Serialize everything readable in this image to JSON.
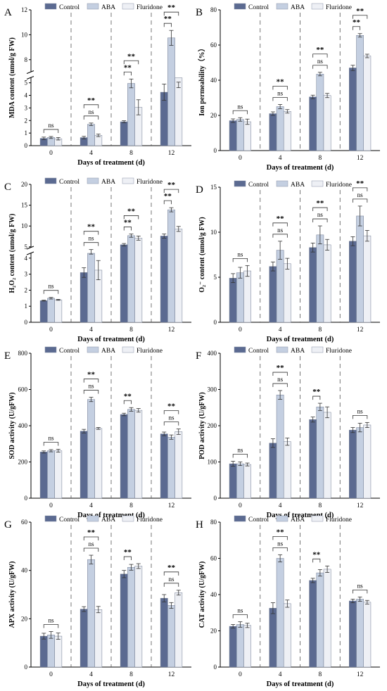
{
  "colors": {
    "control": "#5b6a91",
    "aba": "#c4cfe1",
    "fluridone": "#eef0f5",
    "axis": "#000000",
    "divider": "#555555"
  },
  "chart_data": [
    {
      "panel": "A",
      "type": "bar",
      "ylabel": "MDA content (umol/g FW)",
      "xlabel": "Days of treatment (d)",
      "categories": [
        "0",
        "4",
        "8",
        "12"
      ],
      "series": [
        {
          "name": "Control",
          "values": [
            0.58,
            0.64,
            1.9,
            4.25
          ],
          "errors": [
            0.1,
            0.1,
            0.08,
            0.65
          ]
        },
        {
          "name": "ABA",
          "values": [
            0.65,
            1.7,
            4.95,
            9.75
          ],
          "errors": [
            0.08,
            0.1,
            0.35,
            0.6
          ]
        },
        {
          "name": "Fluridone",
          "values": [
            0.55,
            0.82,
            3.05,
            5.4
          ],
          "errors": [
            0.1,
            0.1,
            0.6,
            0.35
          ]
        }
      ],
      "broken_axis": {
        "lower": [
          0,
          5.4
        ],
        "upper": [
          7,
          12
        ],
        "lower_ticks": [
          0,
          1,
          2,
          3,
          4,
          5
        ],
        "upper_ticks": [
          8,
          10,
          12
        ]
      },
      "annotations": [
        {
          "cat": 0,
          "label": "ns",
          "sig": false
        },
        {
          "cat": 1,
          "label": "ns",
          "sig": false
        },
        {
          "cat": 1,
          "label": "**",
          "sig": true
        },
        {
          "cat": 2,
          "label": "**",
          "sig": true
        },
        {
          "cat": 2,
          "label": "**",
          "sig": true
        },
        {
          "cat": 3,
          "label": "**",
          "sig": true
        },
        {
          "cat": 3,
          "label": "**",
          "sig": true
        }
      ]
    },
    {
      "panel": "B",
      "type": "bar",
      "ylabel": "Ion permeability（%）",
      "xlabel": "Days of treatment (d)",
      "categories": [
        "0",
        "4",
        "8",
        "12"
      ],
      "series": [
        {
          "name": "Control",
          "values": [
            17,
            21,
            30.5,
            47
          ],
          "errors": [
            1,
            1,
            1,
            1.5
          ]
        },
        {
          "name": "ABA",
          "values": [
            17.7,
            25,
            43.5,
            65.5
          ],
          "errors": [
            1,
            1.2,
            1,
            1
          ]
        },
        {
          "name": "Fluridone",
          "values": [
            16.4,
            22.3,
            31.3,
            53.8
          ],
          "errors": [
            1.5,
            1,
            1.2,
            1
          ]
        }
      ],
      "ylim": [
        0,
        80
      ],
      "yticks": [
        0,
        20,
        40,
        60,
        80
      ],
      "annotations": [
        {
          "cat": 0,
          "label": "ns",
          "sig": false
        },
        {
          "cat": 1,
          "label": "ns",
          "sig": false
        },
        {
          "cat": 1,
          "label": "**",
          "sig": true
        },
        {
          "cat": 2,
          "label": "ns",
          "sig": false
        },
        {
          "cat": 2,
          "label": "**",
          "sig": true
        },
        {
          "cat": 3,
          "label": "**",
          "sig": true
        },
        {
          "cat": 3,
          "label": "**",
          "sig": true
        }
      ]
    },
    {
      "panel": "C",
      "type": "bar",
      "ylabel": "H₂O₂ content (umol/g FW)",
      "xlabel": "Days of treatment (d)",
      "categories": [
        "0",
        "4",
        "8",
        "12"
      ],
      "series": [
        {
          "name": "Control",
          "values": [
            1.35,
            3.1,
            5.5,
            7.6
          ],
          "errors": [
            0.03,
            0.3,
            0.3,
            0.5
          ]
        },
        {
          "name": "ABA",
          "values": [
            1.5,
            4.3,
            7.7,
            13.9
          ],
          "errors": [
            0.05,
            0.05,
            0.4,
            0.5
          ]
        },
        {
          "name": "Fluridone",
          "values": [
            1.4,
            3.25,
            7.1,
            9.3
          ],
          "errors": [
            0.03,
            0.6,
            0.5,
            0.6
          ]
        }
      ],
      "broken_axis": {
        "lower": [
          0,
          4.3
        ],
        "upper": [
          4.8,
          20
        ],
        "lower_ticks": [
          0,
          1,
          2,
          3,
          4
        ],
        "upper_ticks": [
          5,
          10,
          15,
          20
        ]
      },
      "annotations": [
        {
          "cat": 0,
          "label": "ns",
          "sig": false
        },
        {
          "cat": 1,
          "label": "ns",
          "sig": false
        },
        {
          "cat": 1,
          "label": "**",
          "sig": true
        },
        {
          "cat": 2,
          "label": "**",
          "sig": true
        },
        {
          "cat": 2,
          "label": "**",
          "sig": true
        },
        {
          "cat": 3,
          "label": "**",
          "sig": true
        },
        {
          "cat": 3,
          "label": "**",
          "sig": true
        }
      ]
    },
    {
      "panel": "D",
      "type": "bar",
      "ylabel": "O₂⁻ content (umol/g FW)",
      "xlabel": "Days of treatment (d)",
      "categories": [
        "0",
        "4",
        "8",
        "12"
      ],
      "series": [
        {
          "name": "Control",
          "values": [
            4.9,
            6.2,
            8.3,
            9.0
          ],
          "errors": [
            0.5,
            0.5,
            0.5,
            0.5
          ]
        },
        {
          "name": "ABA",
          "values": [
            5.5,
            8.0,
            9.7,
            11.8
          ],
          "errors": [
            0.6,
            1.0,
            1.0,
            1.1
          ]
        },
        {
          "name": "Fluridone",
          "values": [
            5.7,
            6.5,
            8.6,
            9.6
          ],
          "errors": [
            0.6,
            0.6,
            0.6,
            0.6
          ]
        }
      ],
      "ylim": [
        0,
        15
      ],
      "yticks": [
        0,
        5,
        10,
        15
      ],
      "annotations": [
        {
          "cat": 0,
          "label": "ns",
          "sig": false
        },
        {
          "cat": 1,
          "label": "ns",
          "sig": false
        },
        {
          "cat": 1,
          "label": "**",
          "sig": true
        },
        {
          "cat": 2,
          "label": "ns",
          "sig": false
        },
        {
          "cat": 2,
          "label": "**",
          "sig": true
        },
        {
          "cat": 3,
          "label": "ns",
          "sig": false
        },
        {
          "cat": 3,
          "label": "**",
          "sig": true
        }
      ]
    },
    {
      "panel": "E",
      "type": "bar",
      "ylabel": "SOD activity (U/gFW)",
      "xlabel": "Days of treatment (d)",
      "categories": [
        "0",
        "4",
        "8",
        "12"
      ],
      "series": [
        {
          "name": "Control",
          "values": [
            255,
            370,
            462,
            355
          ],
          "errors": [
            6,
            10,
            7,
            10
          ]
        },
        {
          "name": "ABA",
          "values": [
            262,
            545,
            490,
            337
          ],
          "errors": [
            6,
            12,
            10,
            12
          ]
        },
        {
          "name": "Fluridone",
          "values": [
            262,
            385,
            485,
            367
          ],
          "errors": [
            8,
            5,
            10,
            15
          ]
        }
      ],
      "ylim": [
        0,
        800
      ],
      "yticks": [
        0,
        200,
        400,
        600,
        800
      ],
      "annotations": [
        {
          "cat": 0,
          "label": "ns",
          "sig": false
        },
        {
          "cat": 1,
          "label": "ns",
          "sig": false
        },
        {
          "cat": 1,
          "label": "**",
          "sig": true
        },
        {
          "cat": 2,
          "label": "**",
          "sig": true
        },
        {
          "cat": 3,
          "label": "ns",
          "sig": false
        },
        {
          "cat": 3,
          "label": "**",
          "sig": true
        }
      ]
    },
    {
      "panel": "F",
      "type": "bar",
      "ylabel": "POD activity (U/gFW)",
      "xlabel": "Days of treatment (d)",
      "categories": [
        "0",
        "4",
        "8",
        "12"
      ],
      "series": [
        {
          "name": "Control",
          "values": [
            95,
            152,
            217,
            188
          ],
          "errors": [
            7,
            12,
            7,
            7
          ]
        },
        {
          "name": "ABA",
          "values": [
            95,
            285,
            252,
            195
          ],
          "errors": [
            5,
            12,
            10,
            12
          ]
        },
        {
          "name": "Fluridone",
          "values": [
            93,
            156,
            237,
            202
          ],
          "errors": [
            4,
            10,
            15,
            7
          ]
        }
      ],
      "ylim": [
        0,
        400
      ],
      "yticks": [
        0,
        100,
        200,
        300,
        400
      ],
      "annotations": [
        {
          "cat": 0,
          "label": "ns",
          "sig": false
        },
        {
          "cat": 1,
          "label": "ns",
          "sig": false
        },
        {
          "cat": 1,
          "label": "**",
          "sig": true
        },
        {
          "cat": 2,
          "label": "**",
          "sig": true
        },
        {
          "cat": 3,
          "label": "ns",
          "sig": false
        }
      ]
    },
    {
      "panel": "G",
      "type": "bar",
      "ylabel": "APX activity (U/gFW)",
      "xlabel": "Days of treatment (d)",
      "categories": [
        "0",
        "4",
        "8",
        "12"
      ],
      "series": [
        {
          "name": "Control",
          "values": [
            12.8,
            24,
            38.5,
            28.5
          ],
          "errors": [
            1.2,
            1,
            1.5,
            1.5
          ]
        },
        {
          "name": "ABA",
          "values": [
            13.3,
            44.5,
            41.3,
            25.5
          ],
          "errors": [
            1.4,
            1.8,
            1.2,
            1.2
          ]
        },
        {
          "name": "Fluridone",
          "values": [
            12.8,
            23.8,
            41.8,
            30.8
          ],
          "errors": [
            1.3,
            1.3,
            1,
            1
          ]
        }
      ],
      "ylim": [
        0,
        60
      ],
      "yticks": [
        0,
        20,
        40,
        60
      ],
      "annotations": [
        {
          "cat": 0,
          "label": "ns",
          "sig": false
        },
        {
          "cat": 1,
          "label": "ns",
          "sig": false
        },
        {
          "cat": 1,
          "label": "**",
          "sig": true
        },
        {
          "cat": 2,
          "label": "**",
          "sig": true
        },
        {
          "cat": 3,
          "label": "ns",
          "sig": false
        },
        {
          "cat": 3,
          "label": "**",
          "sig": true
        }
      ]
    },
    {
      "panel": "H",
      "type": "bar",
      "ylabel": "CAT activity (U/gFW)",
      "xlabel": "Days of treatment (d)",
      "categories": [
        "0",
        "4",
        "8",
        "12"
      ],
      "series": [
        {
          "name": "Control",
          "values": [
            22.5,
            32.5,
            47.8,
            36.5
          ],
          "errors": [
            1,
            3,
            1.2,
            1
          ]
        },
        {
          "name": "ABA",
          "values": [
            23.5,
            60,
            52,
            37.5
          ],
          "errors": [
            1.5,
            2,
            1.8,
            1.2
          ]
        },
        {
          "name": "Fluridone",
          "values": [
            23,
            35,
            54,
            35.8
          ],
          "errors": [
            1.2,
            2,
            1.8,
            1
          ]
        }
      ],
      "ylim": [
        0,
        80
      ],
      "yticks": [
        0,
        20,
        40,
        60,
        80
      ],
      "annotations": [
        {
          "cat": 0,
          "label": "ns",
          "sig": false
        },
        {
          "cat": 1,
          "label": "ns",
          "sig": false
        },
        {
          "cat": 1,
          "label": "**",
          "sig": true
        },
        {
          "cat": 2,
          "label": "**",
          "sig": true
        },
        {
          "cat": 3,
          "label": "ns",
          "sig": false
        }
      ]
    }
  ]
}
